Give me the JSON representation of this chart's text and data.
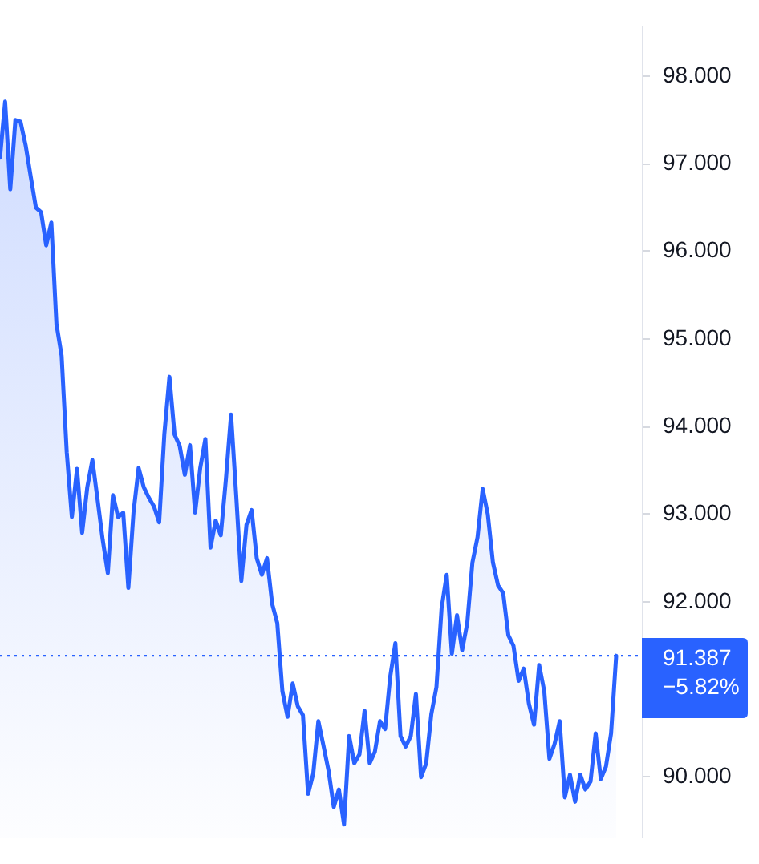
{
  "chart_data": {
    "type": "area",
    "categories": [
      null,
      null,
      null,
      null,
      null,
      null,
      null,
      null,
      null,
      null,
      null,
      null,
      null,
      null,
      null,
      null,
      null,
      null,
      null,
      null,
      null,
      null,
      null,
      null,
      null,
      null,
      null,
      null,
      null,
      null,
      null,
      null,
      null,
      null,
      null,
      null,
      null,
      null,
      null,
      null,
      null,
      null,
      null,
      null,
      null,
      null,
      null,
      null,
      null,
      null,
      null,
      null,
      null,
      null,
      null,
      null,
      null,
      null,
      null,
      null,
      null,
      null,
      null,
      null,
      null,
      null,
      null,
      null,
      null,
      null,
      null,
      null,
      null,
      null,
      null,
      null,
      null,
      null,
      null,
      null,
      null,
      null,
      null,
      null,
      null,
      null,
      null,
      null,
      null,
      null,
      null,
      null,
      null,
      null,
      null,
      null,
      null,
      null,
      null,
      null,
      null,
      null,
      null,
      null,
      null,
      null,
      null,
      null,
      null,
      null,
      null,
      null,
      null,
      null,
      null,
      null,
      null,
      null,
      null,
      null,
      null,
      null,
      null,
      null,
      null,
      null
    ],
    "series": [
      {
        "color": "#2962ff",
        "values": [
          97.07,
          97.71,
          96.71,
          97.5,
          97.48,
          97.21,
          96.85,
          96.5,
          96.45,
          96.07,
          96.33,
          95.17,
          94.81,
          93.71,
          92.97,
          93.52,
          92.79,
          93.31,
          93.62,
          93.17,
          92.71,
          92.33,
          93.22,
          92.97,
          93.02,
          92.16,
          93.02,
          93.53,
          93.31,
          93.19,
          93.09,
          92.91,
          93.91,
          94.57,
          93.91,
          93.78,
          93.45,
          93.79,
          93.02,
          93.53,
          93.86,
          92.62,
          92.93,
          92.76,
          93.4,
          94.14,
          93.22,
          92.24,
          92.88,
          93.05,
          92.5,
          92.31,
          92.5,
          91.98,
          91.76,
          90.98,
          90.69,
          91.07,
          90.81,
          90.71,
          89.81,
          90.04,
          90.64,
          90.36,
          90.07,
          89.66,
          89.86,
          89.46,
          90.47,
          90.16,
          90.26,
          90.76,
          90.16,
          90.29,
          90.64,
          90.55,
          91.15,
          91.53,
          90.47,
          90.35,
          90.47,
          90.95,
          90.0,
          90.16,
          90.72,
          91.03,
          91.93,
          92.31,
          91.41,
          91.85,
          91.45,
          91.76,
          92.45,
          92.74,
          93.29,
          93.0,
          92.45,
          92.19,
          92.1,
          91.62,
          91.5,
          91.1,
          91.24,
          90.84,
          90.6,
          91.28,
          90.98,
          90.21,
          90.38,
          90.64,
          89.77,
          90.03,
          89.72,
          90.03,
          89.86,
          89.95,
          90.5,
          89.98,
          90.12,
          90.5,
          91.387,
          null,
          null,
          null,
          null,
          null
        ]
      }
    ],
    "ylim": [
      89.31,
      98.57
    ],
    "yticks": [
      {
        "value": 90,
        "label": "90.000"
      },
      {
        "value": 92,
        "label": "92.000"
      },
      {
        "value": 93,
        "label": "93.000"
      },
      {
        "value": 94,
        "label": "94.000"
      },
      {
        "value": 95,
        "label": "95.000"
      },
      {
        "value": 96,
        "label": "96.000"
      },
      {
        "value": 97,
        "label": "97.000"
      },
      {
        "value": 98,
        "label": "98.000"
      }
    ],
    "ref_lines": [
      {
        "axis": "y",
        "value": 91.387,
        "label": "91.387 −5.82%",
        "color": "#2962ff",
        "line_style": "dotted"
      }
    ],
    "marker": "none",
    "tick_labels": "y",
    "legend": false
  }
}
